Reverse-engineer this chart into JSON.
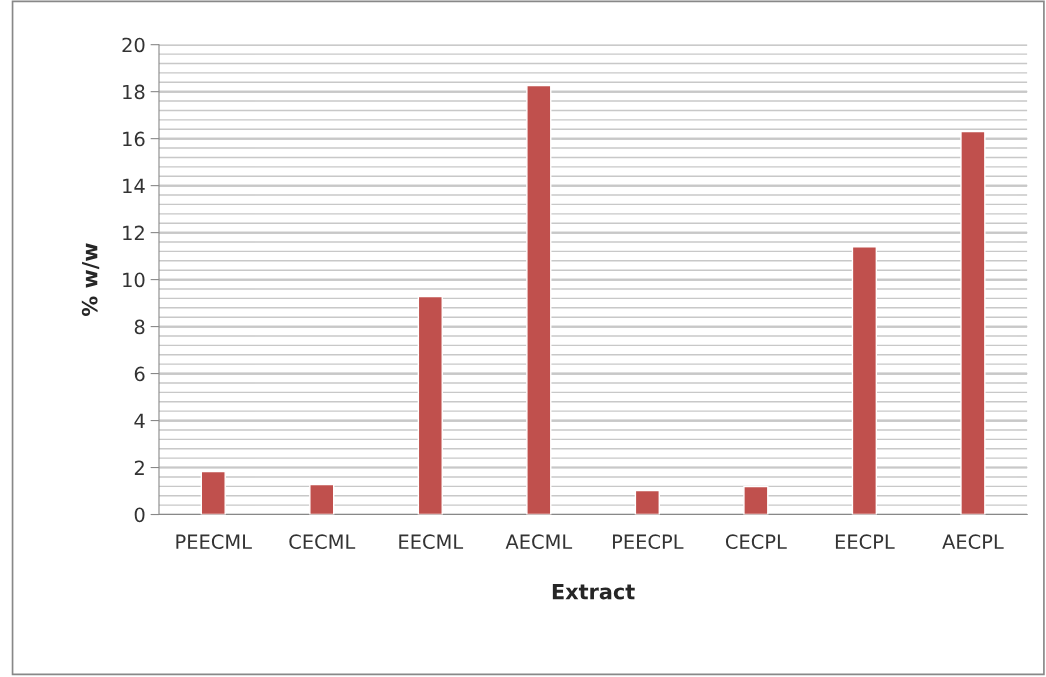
{
  "chart_data": {
    "type": "bar",
    "xlabel": "Extract",
    "ylabel": "% w/w",
    "categories": [
      "PEECML",
      "CECML",
      "EECML",
      "AECML",
      "PEECPL",
      "CECPL",
      "EECPL",
      "AECPL"
    ],
    "values": [
      1.83,
      1.28,
      9.28,
      18.26,
      1.02,
      1.19,
      11.4,
      16.3
    ],
    "color": "#c0504d",
    "ylim": [
      0,
      20
    ],
    "yticks": [
      0,
      2,
      4,
      6,
      8,
      10,
      12,
      14,
      16,
      18,
      20
    ],
    "grid": "y"
  }
}
